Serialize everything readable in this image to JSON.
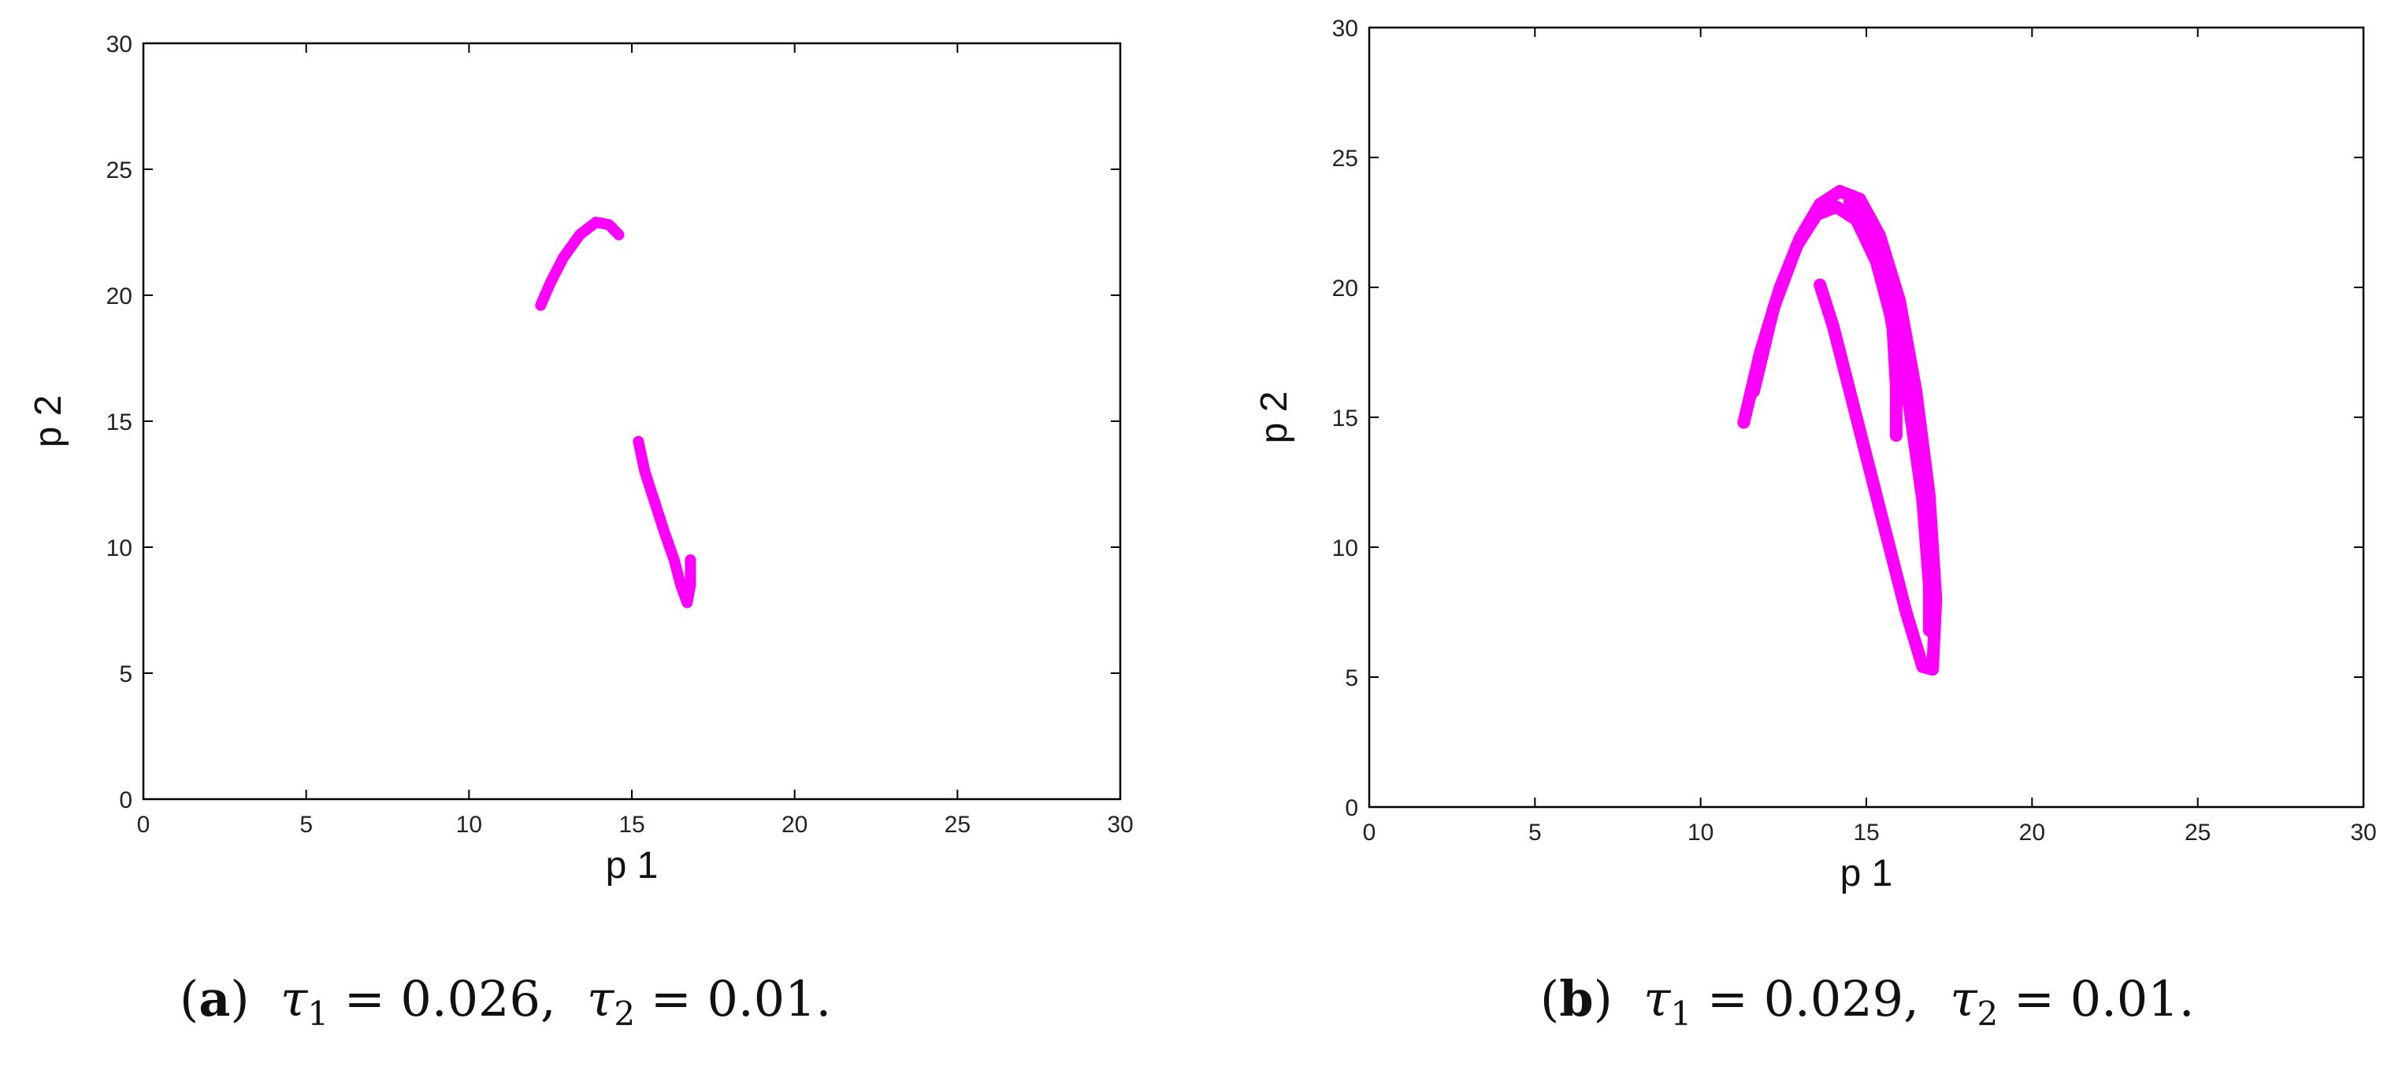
{
  "chart_data": [
    {
      "type": "scatter",
      "panel": "a",
      "xlabel": "p 1",
      "ylabel": "p 2",
      "xlim": [
        0,
        30
      ],
      "ylim": [
        0,
        30
      ],
      "xticks": [
        0,
        5,
        10,
        15,
        20,
        25,
        30
      ],
      "yticks": [
        0,
        5,
        10,
        15,
        20,
        25,
        30
      ],
      "grid": false,
      "color": "#ff00ff",
      "series": [
        {
          "values": [
            [
              12.2,
              19.6
            ],
            [
              12.5,
              20.5
            ],
            [
              12.9,
              21.5
            ],
            [
              13.4,
              22.4
            ],
            [
              13.9,
              22.9
            ],
            [
              14.3,
              22.8
            ],
            [
              14.6,
              22.4
            ]
          ]
        },
        {
          "values": [
            [
              15.2,
              14.2
            ],
            [
              15.4,
              13.0
            ],
            [
              15.7,
              11.8
            ],
            [
              16.0,
              10.6
            ],
            [
              16.3,
              9.5
            ],
            [
              16.5,
              8.5
            ],
            [
              16.7,
              7.8
            ],
            [
              16.8,
              8.5
            ],
            [
              16.8,
              9.5
            ]
          ]
        }
      ],
      "caption": {
        "letter": "a",
        "tau1": "0.026",
        "tau2": "0.01"
      }
    },
    {
      "type": "scatter",
      "panel": "b",
      "xlabel": "p 1",
      "ylabel": "p 2",
      "xlim": [
        0,
        30
      ],
      "ylim": [
        0,
        30
      ],
      "xticks": [
        0,
        5,
        10,
        15,
        20,
        25,
        30
      ],
      "yticks": [
        0,
        5,
        10,
        15,
        20,
        25,
        30
      ],
      "grid": false,
      "color": "#ff00ff",
      "series": [
        {
          "values": [
            [
              11.3,
              14.8
            ],
            [
              11.8,
              17.5
            ],
            [
              12.4,
              20.0
            ],
            [
              13.0,
              21.9
            ],
            [
              13.6,
              23.2
            ],
            [
              14.2,
              23.7
            ],
            [
              14.8,
              23.4
            ],
            [
              15.4,
              22.0
            ],
            [
              16.0,
              19.5
            ],
            [
              16.5,
              16.0
            ],
            [
              16.9,
              12.0
            ],
            [
              17.1,
              8.0
            ],
            [
              17.0,
              5.3
            ],
            [
              16.7,
              5.4
            ],
            [
              16.2,
              7.5
            ],
            [
              15.6,
              10.5
            ],
            [
              15.0,
              13.5
            ],
            [
              14.4,
              16.5
            ],
            [
              14.0,
              18.5
            ],
            [
              13.6,
              20.1
            ]
          ]
        },
        {
          "values": [
            [
              11.6,
              16.0
            ],
            [
              12.2,
              19.2
            ],
            [
              12.9,
              21.6
            ],
            [
              13.5,
              22.8
            ],
            [
              14.1,
              23.1
            ],
            [
              14.7,
              22.6
            ],
            [
              15.3,
              21.0
            ],
            [
              15.8,
              18.6
            ],
            [
              16.3,
              15.4
            ],
            [
              16.7,
              11.8
            ],
            [
              16.9,
              8.5
            ],
            [
              16.9,
              6.8
            ]
          ]
        },
        {
          "values": [
            [
              14.5,
              23.3
            ],
            [
              15.1,
              22.3
            ],
            [
              15.5,
              20.6
            ],
            [
              15.8,
              18.4
            ],
            [
              15.9,
              16.2
            ],
            [
              15.9,
              14.3
            ]
          ]
        }
      ],
      "caption": {
        "letter": "b",
        "tau1": "0.029",
        "tau2": "0.01"
      }
    }
  ]
}
